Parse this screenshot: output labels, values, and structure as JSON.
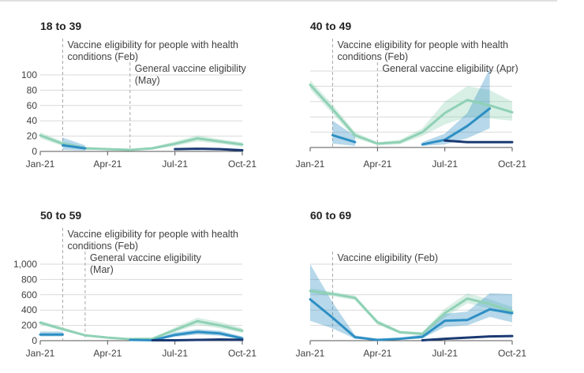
{
  "chart_data": [
    {
      "type": "line",
      "title": "18 to 39",
      "x_ticks": [
        "Jan-21",
        "Apr-21",
        "Jul-21",
        "Oct-21"
      ],
      "ylim": [
        0,
        100
      ],
      "y_ticks": [
        "0",
        "20",
        "40",
        "60",
        "80",
        "100"
      ],
      "annotations": [
        {
          "month": 1,
          "lines": [
            "Vaccine eligibility for people with health",
            "conditions (Feb)"
          ]
        },
        {
          "month": 4,
          "lines": [
            "General vaccine eligibility",
            "(May)"
          ]
        }
      ],
      "series": [
        {
          "color": "#8fd1b5",
          "x": [
            0,
            1,
            2,
            3,
            4,
            5,
            6,
            7,
            8,
            9
          ],
          "y": [
            21,
            10,
            4,
            3,
            2,
            4,
            10,
            17,
            13,
            9
          ],
          "lower": [
            17,
            7,
            2,
            2,
            1,
            3,
            7,
            13,
            10,
            6
          ],
          "upper": [
            25,
            13,
            6,
            4,
            3,
            6,
            13,
            21,
            16,
            12
          ]
        },
        {
          "color": "#2e8fc4",
          "x": [
            1,
            2
          ],
          "y": [
            8,
            4
          ],
          "lower": [
            2,
            1
          ],
          "upper": [
            18,
            8
          ]
        },
        {
          "color": "#1a3a73",
          "x": [
            6,
            7,
            8,
            9
          ],
          "y": [
            3,
            3.5,
            3,
            1.5
          ]
        }
      ]
    },
    {
      "type": "line",
      "title": "40 to 49",
      "x_ticks": [
        "Jan-21",
        "Apr-21",
        "Jul-21",
        "Oct-21"
      ],
      "ylim": [
        0,
        100
      ],
      "y_ticks": [],
      "annotations": [
        {
          "month": 1,
          "lines": [
            "Vaccine eligibility for people with health",
            "conditions (Feb)"
          ]
        },
        {
          "month": 3,
          "lines": [
            "General vaccine eligibility (Apr)"
          ]
        }
      ],
      "series": [
        {
          "color": "#8fd1b5",
          "x": [
            0,
            1,
            2,
            3,
            4,
            5,
            6,
            7,
            8,
            9
          ],
          "y": [
            82,
            50,
            16,
            5,
            7,
            20,
            45,
            62,
            55,
            46
          ],
          "lower": [
            76,
            44,
            12,
            3,
            4,
            15,
            30,
            40,
            38,
            35
          ],
          "upper": [
            88,
            56,
            20,
            7,
            10,
            25,
            60,
            80,
            75,
            60
          ]
        },
        {
          "color": "#2e8fc4",
          "x": [
            1,
            2
          ],
          "y": [
            16,
            7
          ],
          "lower": [
            5,
            2
          ],
          "upper": [
            35,
            15
          ]
        },
        {
          "color": "#2e8fc4",
          "x": [
            5,
            6,
            7,
            8
          ],
          "y": [
            4,
            10,
            28,
            51
          ],
          "lower": [
            2,
            4,
            12,
            25
          ],
          "upper": [
            7,
            18,
            45,
            103
          ]
        },
        {
          "color": "#1a3a73",
          "x": [
            6,
            7,
            8,
            9
          ],
          "y": [
            9,
            7,
            7,
            7
          ]
        }
      ]
    },
    {
      "type": "line",
      "title": "50 to 59",
      "x_ticks": [
        "Jan-21",
        "Apr-21",
        "Jul-21",
        "Oct-21"
      ],
      "ylim": [
        0,
        1000
      ],
      "y_ticks": [
        "0",
        "200",
        "400",
        "600",
        "800",
        "1,000"
      ],
      "annotations": [
        {
          "month": 1,
          "lines": [
            "Vaccine eligibility for people with health",
            "conditions (Feb)"
          ]
        },
        {
          "month": 2,
          "lines": [
            "General vaccine eligibility",
            "(Mar)"
          ]
        }
      ],
      "series": [
        {
          "color": "#8fd1b5",
          "x": [
            0,
            1,
            2,
            3,
            4,
            5,
            6,
            7,
            8,
            9
          ],
          "y": [
            235,
            150,
            70,
            40,
            20,
            25,
            140,
            255,
            200,
            130
          ],
          "lower": [
            210,
            130,
            60,
            32,
            14,
            18,
            110,
            210,
            160,
            100
          ],
          "upper": [
            260,
            175,
            85,
            50,
            28,
            34,
            175,
            300,
            245,
            165
          ]
        },
        {
          "color": "#2e8fc4",
          "x": [
            0,
            1
          ],
          "y": [
            80,
            80
          ],
          "lower": [
            55,
            55
          ],
          "upper": [
            120,
            120
          ]
        },
        {
          "color": "#2e8fc4",
          "x": [
            4,
            5,
            6,
            7,
            8,
            9
          ],
          "y": [
            10,
            5,
            75,
            115,
            95,
            30
          ],
          "lower": [
            5,
            2,
            50,
            80,
            65,
            15
          ],
          "upper": [
            20,
            12,
            110,
            150,
            130,
            55
          ]
        },
        {
          "color": "#1a3a73",
          "x": [
            5,
            6,
            7,
            8,
            9
          ],
          "y": [
            5,
            5,
            10,
            15,
            12
          ]
        }
      ]
    },
    {
      "type": "line",
      "title": "60 to 69",
      "x_ticks": [
        "Jan-21",
        "Apr-21",
        "Jul-21",
        "Oct-21"
      ],
      "ylim": [
        0,
        1000
      ],
      "y_ticks": [],
      "annotations": [
        {
          "month": 1,
          "lines": [
            "Vaccine eligibility (Feb)"
          ]
        }
      ],
      "series": [
        {
          "color": "#8fd1b5",
          "x": [
            0,
            1,
            2,
            3,
            4,
            5,
            6,
            7,
            8,
            9
          ],
          "y": [
            650,
            610,
            560,
            240,
            110,
            90,
            360,
            550,
            480,
            380
          ],
          "lower": [
            620,
            580,
            530,
            210,
            90,
            70,
            300,
            490,
            420,
            320
          ],
          "upper": [
            680,
            640,
            590,
            270,
            130,
            110,
            420,
            620,
            540,
            440
          ]
        },
        {
          "color": "#2e8fc4",
          "x": [
            0,
            1,
            2,
            3,
            4,
            5,
            6,
            7,
            8,
            9
          ],
          "y": [
            540,
            300,
            45,
            10,
            25,
            50,
            260,
            270,
            410,
            360
          ],
          "lower": [
            260,
            160,
            25,
            5,
            15,
            30,
            180,
            200,
            310,
            240
          ],
          "upper": [
            1000,
            500,
            70,
            20,
            40,
            80,
            350,
            380,
            620,
            610
          ]
        },
        {
          "color": "#1a3a73",
          "x": [
            5,
            6,
            7,
            8,
            9
          ],
          "y": [
            5,
            25,
            40,
            55,
            60
          ]
        }
      ]
    }
  ]
}
